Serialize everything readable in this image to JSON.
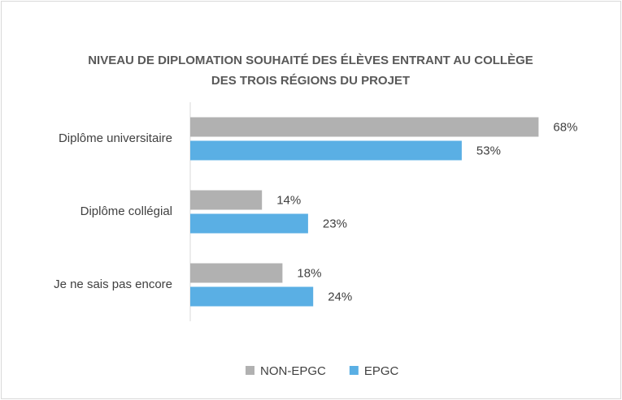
{
  "chart_data": {
    "type": "hbar",
    "title": "NIVEAU DE DIPLOMATION SOUHAITÉ DES ÉLÈVES ENTRANT AU COLLÈGE DES TROIS RÉGIONS DU PROJET",
    "categories": [
      "Diplôme universitaire",
      "Diplôme collégial",
      "Je ne sais pas encore"
    ],
    "series": [
      {
        "name": "NON-EPGC",
        "color": "#b1b1b1",
        "values": [
          68,
          14,
          18
        ],
        "value_labels": [
          "68%",
          "14%",
          "18%"
        ]
      },
      {
        "name": "EPGC",
        "color": "#5aafe4",
        "values": [
          53,
          23,
          24
        ],
        "value_labels": [
          "53%",
          "23%",
          "24%"
        ]
      }
    ],
    "xlim": [
      0,
      80
    ],
    "legend": "bottom"
  }
}
